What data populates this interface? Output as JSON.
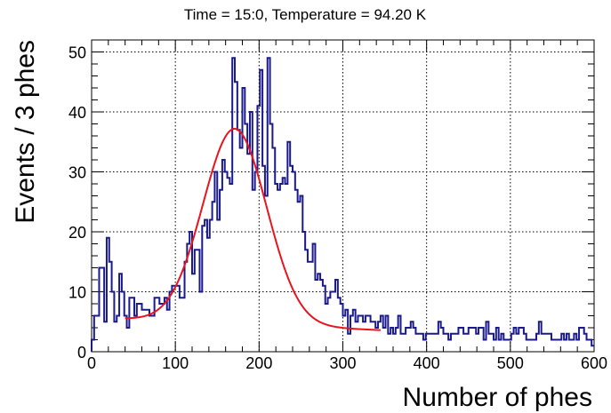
{
  "chart_data": {
    "type": "histogram",
    "title": "Time = 15:0, Temperature = 94.20 K",
    "xlabel": "Number of phes",
    "ylabel": "Events / 3 phes",
    "xlim": [
      0,
      600
    ],
    "ylim": [
      0,
      52
    ],
    "bin_width": 3,
    "grid": true,
    "x_ticks": [
      0,
      100,
      200,
      300,
      400,
      500,
      600
    ],
    "y_ticks": [
      0,
      10,
      20,
      30,
      40,
      50
    ],
    "histogram_color": "#1a1a8c",
    "fit_color": "#e8141e",
    "counts": [
      2,
      6,
      6,
      14,
      14,
      5,
      19,
      15,
      10,
      5,
      6,
      13,
      10,
      6,
      4,
      9,
      9,
      6,
      8,
      8,
      7,
      7,
      7,
      6,
      6,
      9,
      9,
      8,
      8,
      9,
      7,
      10,
      11,
      11,
      11,
      9,
      9,
      15,
      18,
      20,
      13,
      17,
      17,
      10,
      21,
      22,
      19,
      22,
      25,
      30,
      22,
      27,
      32,
      30,
      29,
      28,
      49,
      45,
      37,
      34,
      44,
      38,
      33,
      40,
      27,
      30,
      41,
      47,
      31,
      26,
      49,
      38,
      34,
      28,
      27,
      28,
      29,
      28,
      35,
      31,
      30,
      27,
      25,
      26,
      20,
      17,
      15,
      15,
      18,
      12,
      13,
      12,
      11,
      8,
      9,
      10,
      10,
      12,
      9,
      8,
      6,
      7,
      3,
      6,
      7,
      5,
      6,
      6,
      5,
      6,
      6,
      5,
      5,
      4,
      5,
      6,
      4,
      6,
      3,
      4,
      3,
      4,
      6,
      3,
      3,
      4,
      4,
      5,
      4,
      3,
      3,
      3,
      2,
      3,
      3,
      3,
      3,
      3,
      5,
      4,
      3,
      3,
      2,
      3,
      3,
      3,
      4,
      4,
      3,
      3,
      4,
      4,
      4,
      3,
      4,
      4,
      2,
      5,
      3,
      3,
      2,
      4,
      2,
      3,
      2,
      2,
      2,
      3,
      4,
      3,
      4,
      4,
      3,
      2,
      2,
      2,
      2,
      3,
      5,
      3,
      3,
      3,
      3,
      2,
      2,
      2,
      2,
      3,
      2,
      3,
      2,
      2,
      3,
      2,
      4,
      4,
      3,
      2,
      2,
      1
    ],
    "fit": {
      "type": "gaussian_plus_linear",
      "x_range": [
        40,
        345
      ],
      "mean": 171,
      "sigma": 38,
      "amplitude": 32.5,
      "baseline_start": 5.5,
      "baseline_end": 3.6
    }
  }
}
